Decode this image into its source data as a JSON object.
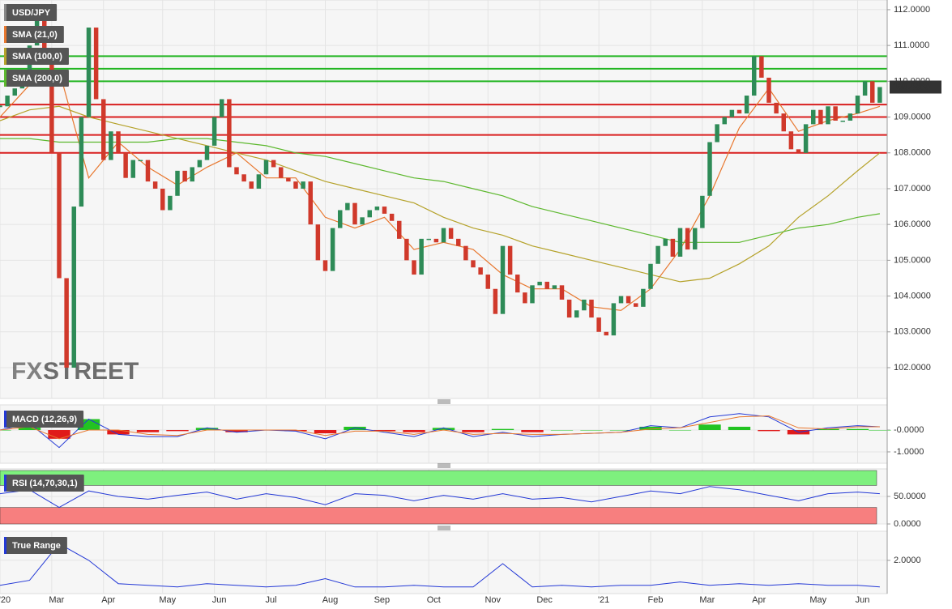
{
  "chart_data": [
    {
      "type": "candlestick",
      "title": "USD/JPY",
      "watermark": [
        "FX",
        "STREET"
      ],
      "xlim": [
        0,
        120
      ],
      "xticks": [
        {
          "value": 0,
          "label": "'20"
        },
        {
          "value": 7,
          "label": "Mar"
        },
        {
          "value": 14,
          "label": "Apr"
        },
        {
          "value": 22,
          "label": "May"
        },
        {
          "value": 29,
          "label": "Jun"
        },
        {
          "value": 36,
          "label": "Jul"
        },
        {
          "value": 44,
          "label": "Aug"
        },
        {
          "value": 51,
          "label": "Sep"
        },
        {
          "value": 58,
          "label": "Oct"
        },
        {
          "value": 66,
          "label": "Nov"
        },
        {
          "value": 73,
          "label": "Dec"
        },
        {
          "value": 81,
          "label": "'21"
        },
        {
          "value": 88,
          "label": "Feb"
        },
        {
          "value": 95,
          "label": "Mar"
        },
        {
          "value": 102,
          "label": "Apr"
        },
        {
          "value": 110,
          "label": "May"
        },
        {
          "value": 116,
          "label": "Jun"
        }
      ],
      "ylim": [
        101.14,
        112.27
      ],
      "yticks": [
        {
          "value": 102,
          "label": "102.0000"
        },
        {
          "value": 103,
          "label": "103.0000"
        },
        {
          "value": 104,
          "label": "104.0000"
        },
        {
          "value": 105,
          "label": "105.0000"
        },
        {
          "value": 106,
          "label": "106.0000"
        },
        {
          "value": 107,
          "label": "107.0000"
        },
        {
          "value": 108,
          "label": "108.0000"
        },
        {
          "value": 109,
          "label": "109.0000"
        },
        {
          "value": 110,
          "label": "110.0000"
        },
        {
          "value": 111,
          "label": "111.0000"
        },
        {
          "value": 112,
          "label": "112.0000"
        }
      ],
      "close": [
        109.3,
        109.6,
        109.8,
        110.2,
        111.0,
        111.8,
        110.5,
        108.0,
        104.5,
        102.0,
        106.5,
        109.0,
        111.5,
        109.5,
        107.8,
        108.6,
        108.0,
        107.3,
        107.8,
        107.8,
        107.2,
        107.0,
        106.4,
        106.8,
        107.5,
        107.2,
        107.6,
        107.8,
        108.2,
        109.0,
        109.5,
        107.6,
        107.4,
        107.2,
        107.0,
        107.4,
        107.8,
        107.6,
        107.3,
        107.2,
        107.0,
        107.2,
        106.0,
        105.0,
        104.7,
        105.9,
        106.4,
        106.6,
        106.0,
        106.2,
        106.4,
        106.5,
        106.3,
        106.1,
        105.6,
        105.0,
        104.6,
        105.6,
        105.6,
        105.5,
        105.9,
        105.6,
        105.4,
        105.0,
        104.8,
        104.6,
        104.2,
        103.5,
        105.4,
        104.6,
        104.1,
        103.8,
        104.3,
        104.4,
        104.2,
        104.3,
        103.9,
        103.4,
        103.6,
        103.9,
        103.4,
        103.0,
        102.9,
        103.8,
        104.0,
        103.8,
        103.7,
        104.2,
        104.9,
        105.4,
        105.6,
        105.1,
        105.9,
        105.3,
        105.9,
        106.8,
        108.3,
        108.8,
        109.0,
        109.2,
        109.1,
        109.6,
        110.7,
        110.1,
        109.4,
        109.1,
        108.6,
        108.1,
        108.0,
        108.8,
        109.2,
        108.8,
        109.3,
        108.9,
        108.9,
        109.1,
        109.6,
        110.0,
        109.4,
        109.838
      ],
      "up_color": "#2e8b57",
      "down_color": "#d0392b",
      "last_price": {
        "value": 109.838,
        "label": "109.8380"
      },
      "levels": [
        110.7,
        110.35,
        110.0,
        109.35,
        109.0,
        108.5,
        108.0
      ],
      "level_colors": [
        "#22b522",
        "#22b522",
        "#22b522",
        "#d91f1f",
        "#d91f1f",
        "#d91f1f",
        "#d91f1f"
      ],
      "series": [
        {
          "name": "SMA (21,0)",
          "color": "#e8772e",
          "x": [
            0,
            4,
            8,
            12,
            16,
            20,
            24,
            28,
            32,
            36,
            40,
            44,
            48,
            52,
            56,
            60,
            64,
            68,
            72,
            76,
            80,
            84,
            88,
            92,
            96,
            100,
            104,
            108,
            112,
            116,
            119
          ],
          "values": [
            109.0,
            109.9,
            110.3,
            107.3,
            108.3,
            107.6,
            107.1,
            107.6,
            108.0,
            107.3,
            107.3,
            106.2,
            105.9,
            106.2,
            105.3,
            105.5,
            105.3,
            104.6,
            104.2,
            104.2,
            103.7,
            103.6,
            104.2,
            105.3,
            106.8,
            108.7,
            109.8,
            108.6,
            108.9,
            109.1,
            109.3
          ]
        },
        {
          "name": "SMA (100,0)",
          "color": "#b5a22a",
          "x": [
            0,
            4,
            8,
            12,
            16,
            20,
            24,
            28,
            32,
            36,
            40,
            44,
            48,
            52,
            56,
            60,
            64,
            68,
            72,
            76,
            80,
            84,
            88,
            92,
            96,
            100,
            104,
            108,
            112,
            116,
            119
          ],
          "values": [
            108.9,
            109.2,
            109.3,
            109.0,
            108.8,
            108.6,
            108.4,
            108.2,
            108.0,
            107.8,
            107.5,
            107.2,
            107.0,
            106.8,
            106.6,
            106.2,
            105.9,
            105.7,
            105.4,
            105.2,
            105.0,
            104.8,
            104.6,
            104.4,
            104.5,
            104.9,
            105.4,
            106.2,
            106.8,
            107.5,
            108.0
          ]
        },
        {
          "name": "SMA (200,0)",
          "color": "#5db82e",
          "x": [
            0,
            4,
            8,
            12,
            16,
            20,
            24,
            28,
            32,
            36,
            40,
            44,
            48,
            52,
            56,
            60,
            64,
            68,
            72,
            76,
            80,
            84,
            88,
            92,
            96,
            100,
            104,
            108,
            112,
            116,
            119
          ],
          "values": [
            108.4,
            108.4,
            108.3,
            108.3,
            108.3,
            108.3,
            108.4,
            108.4,
            108.3,
            108.2,
            108.0,
            107.9,
            107.7,
            107.5,
            107.3,
            107.2,
            107.0,
            106.8,
            106.5,
            106.3,
            106.1,
            105.9,
            105.7,
            105.5,
            105.5,
            105.5,
            105.7,
            105.9,
            106.0,
            106.2,
            106.3
          ]
        }
      ]
    },
    {
      "type": "macd",
      "title": "MACD (12,26,9)",
      "ylim": [
        -1.52,
        1.15
      ],
      "yticks": [
        {
          "value": 0,
          "label": "-0.0000"
        },
        {
          "value": -1,
          "label": "-1.0000"
        }
      ],
      "x": [
        0,
        4,
        8,
        12,
        16,
        20,
        24,
        28,
        32,
        36,
        40,
        44,
        48,
        52,
        56,
        60,
        64,
        68,
        72,
        76,
        80,
        84,
        88,
        92,
        96,
        100,
        104,
        108,
        112,
        116,
        119
      ],
      "series": [
        {
          "name": "MACD",
          "color": "#2338d6",
          "values": [
            0.0,
            0.3,
            -0.8,
            0.5,
            -0.2,
            -0.3,
            -0.3,
            0.1,
            -0.1,
            0.0,
            -0.05,
            -0.4,
            0.1,
            -0.1,
            -0.3,
            0.1,
            -0.3,
            -0.1,
            -0.3,
            -0.2,
            -0.15,
            -0.1,
            0.2,
            0.1,
            0.6,
            0.75,
            0.6,
            -0.1,
            0.1,
            0.2,
            0.15
          ]
        },
        {
          "name": "Signal",
          "color": "#e8772e",
          "values": [
            0.0,
            0.15,
            -0.4,
            0.0,
            0.0,
            -0.2,
            -0.25,
            0.0,
            0.0,
            0.0,
            0.0,
            -0.25,
            -0.05,
            -0.05,
            -0.2,
            0.0,
            -0.2,
            -0.15,
            -0.2,
            -0.2,
            -0.15,
            -0.1,
            0.05,
            0.1,
            0.35,
            0.6,
            0.65,
            0.1,
            0.05,
            0.15,
            0.15
          ]
        }
      ],
      "histogram": [
        0,
        0.15,
        -0.4,
        0.5,
        -0.2,
        -0.1,
        -0.05,
        0.1,
        -0.1,
        0,
        -0.05,
        -0.15,
        0.15,
        -0.05,
        -0.1,
        0.1,
        -0.1,
        0.05,
        -0.1,
        0,
        0,
        0,
        0.15,
        0,
        0.25,
        0.15,
        -0.05,
        -0.2,
        0.05,
        0.05,
        0
      ],
      "up_color": "#22c322",
      "down_color": "#e01a1a"
    },
    {
      "type": "rsi",
      "title": "RSI (14,70,30,1)",
      "ylim": [
        0,
        100
      ],
      "yticks": [
        {
          "value": 0,
          "label": "0.0000"
        },
        {
          "value": 50,
          "label": "50.0000"
        }
      ],
      "overbought": 70,
      "oversold": 30,
      "overbought_color": "#7ef07e",
      "oversold_color": "#f77f7f",
      "x": [
        0,
        4,
        8,
        12,
        16,
        20,
        24,
        28,
        32,
        36,
        40,
        44,
        48,
        52,
        56,
        60,
        64,
        68,
        72,
        76,
        80,
        84,
        88,
        92,
        96,
        100,
        104,
        108,
        112,
        116,
        119
      ],
      "series": [
        {
          "name": "RSI",
          "color": "#2338d6",
          "values": [
            55,
            62,
            30,
            60,
            50,
            45,
            52,
            58,
            45,
            55,
            48,
            35,
            55,
            52,
            42,
            52,
            45,
            55,
            45,
            48,
            40,
            50,
            60,
            55,
            68,
            62,
            52,
            42,
            55,
            58,
            55
          ]
        }
      ]
    },
    {
      "type": "line",
      "title": "True Range",
      "ylim": [
        0,
        3.75
      ],
      "yticks": [
        {
          "value": 2,
          "label": "2.0000"
        }
      ],
      "x": [
        0,
        4,
        8,
        12,
        16,
        20,
        24,
        28,
        32,
        36,
        40,
        44,
        48,
        52,
        56,
        60,
        64,
        68,
        72,
        76,
        80,
        84,
        88,
        92,
        96,
        100,
        104,
        108,
        112,
        116,
        119
      ],
      "series": [
        {
          "name": "True Range",
          "color": "#2338d6",
          "values": [
            0.5,
            0.8,
            3.0,
            2.0,
            0.6,
            0.5,
            0.4,
            0.6,
            0.5,
            0.4,
            0.5,
            0.9,
            0.4,
            0.4,
            0.5,
            0.4,
            0.4,
            1.8,
            0.4,
            0.5,
            0.4,
            0.5,
            0.5,
            0.7,
            0.5,
            0.6,
            0.5,
            0.6,
            0.5,
            0.5,
            0.4
          ]
        }
      ]
    }
  ]
}
